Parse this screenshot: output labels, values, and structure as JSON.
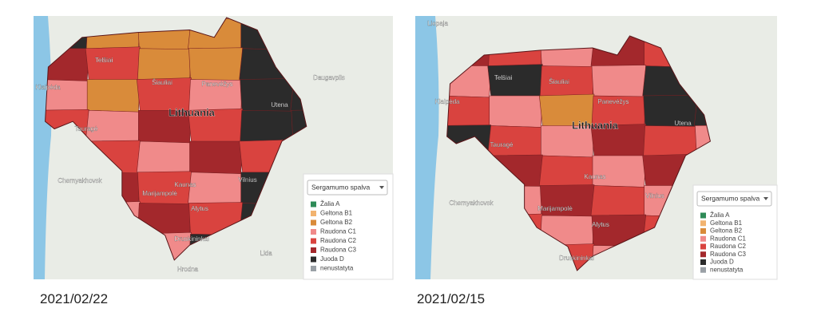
{
  "dropdown": "Sergamumo spalva",
  "legend": [
    {
      "label": "Žalia A",
      "color": "#2e8b57"
    },
    {
      "label": "Geltona B1",
      "color": "#f2b36f"
    },
    {
      "label": "Geltona B2",
      "color": "#d98b3a"
    },
    {
      "label": "Raudona C1",
      "color": "#f08a8a"
    },
    {
      "label": "Raudona C2",
      "color": "#d9433f"
    },
    {
      "label": "Raudona C3",
      "color": "#a3282c"
    },
    {
      "label": "Juoda D",
      "color": "#2b2b2b"
    },
    {
      "label": "nenustatyta",
      "color": "#9aa0a6"
    }
  ],
  "panels": [
    {
      "caption": "2021/02/22",
      "map_labels": [
        "Lithuania",
        "Šiauliai",
        "Panevėžys",
        "Kaunas",
        "Vilnius",
        "Klaipėda",
        "Utena",
        "Alytus",
        "Marijampolė",
        "Tauragė",
        "Telšiai",
        "Druskininkai",
        "Daugavpils",
        "Lida",
        "Hrodna",
        "Chernyakhovsk"
      ]
    },
    {
      "caption": "2021/02/15",
      "map_labels": [
        "Lithuania",
        "Šiauliai",
        "Panevėžys",
        "Kaunas",
        "Vilnius",
        "Klaipėda",
        "Utena",
        "Alytus",
        "Marijampolė",
        "Tauragė",
        "Telšiai",
        "Druskininkai",
        "Liepaja",
        "Chernyakhovsk"
      ]
    }
  ]
}
